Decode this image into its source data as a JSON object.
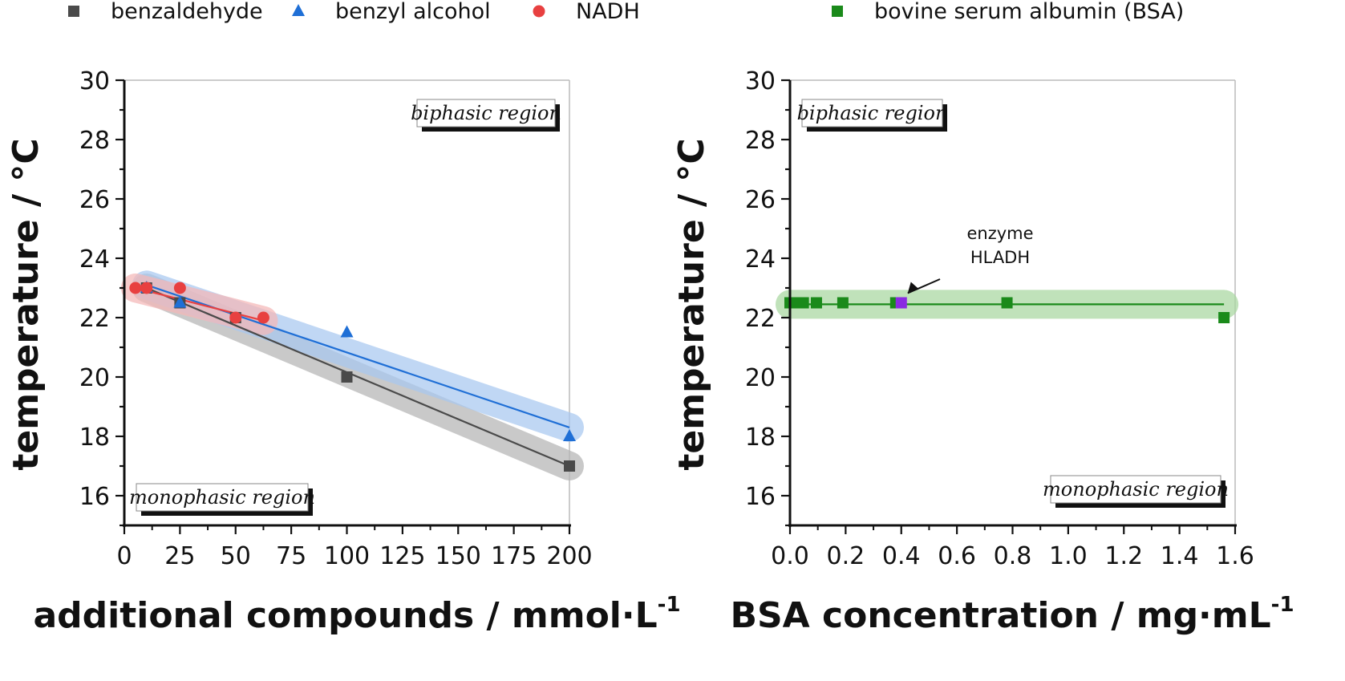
{
  "chart_data": [
    {
      "type": "scatter",
      "xlabel": "additional compounds / mmol·L",
      "xlabel_sup": "-1",
      "ylabel": "temperature / °C",
      "xlim": [
        0,
        200
      ],
      "ylim": [
        15,
        30
      ],
      "xticks": [
        "0",
        "25",
        "50",
        "75",
        "100",
        "125",
        "150",
        "175",
        "200"
      ],
      "yticks": [
        "16",
        "18",
        "20",
        "22",
        "24",
        "26",
        "28",
        "30"
      ],
      "grid": false,
      "legend_position": "top",
      "region_top": "biphasic region",
      "region_bottom": "monophasic region",
      "series": [
        {
          "name": "benzaldehyde",
          "marker": "square",
          "color": "#4a4a4a",
          "band_color": "#b5b5b5",
          "x": [
            10,
            25,
            50,
            100,
            200
          ],
          "y": [
            23.0,
            22.5,
            22.0,
            20.0,
            17.0
          ],
          "fit": [
            [
              10,
              23.0
            ],
            [
              200,
              17.0
            ]
          ]
        },
        {
          "name": "benzyl alcohol",
          "marker": "triangle",
          "color": "#1f6fd6",
          "band_color": "#a8c8f0",
          "x": [
            10,
            25,
            100,
            200
          ],
          "y": [
            23.0,
            22.5,
            21.5,
            18.0
          ],
          "fit": [
            [
              10,
              23.1
            ],
            [
              200,
              18.3
            ]
          ]
        },
        {
          "name": "NADH",
          "marker": "circle",
          "color": "#e84040",
          "band_color": "#f5b8b8",
          "x": [
            5,
            10,
            25,
            50,
            62.5
          ],
          "y": [
            23.0,
            23.0,
            23.0,
            22.0,
            22.0
          ],
          "fit": [
            [
              5,
              23.0
            ],
            [
              62.5,
              21.9
            ]
          ]
        }
      ]
    },
    {
      "type": "scatter",
      "xlabel": "BSA concentration / mg·mL",
      "xlabel_sup": "-1",
      "ylabel": "temperature / °C",
      "xlim": [
        0,
        1.6
      ],
      "ylim": [
        15,
        30
      ],
      "xticks": [
        "0.0",
        "0.2",
        "0.4",
        "0.6",
        "0.8",
        "1.0",
        "1.2",
        "1.4",
        "1.6"
      ],
      "yticks": [
        "16",
        "18",
        "20",
        "22",
        "24",
        "26",
        "28",
        "30"
      ],
      "grid": false,
      "legend_position": "top",
      "region_top": "biphasic region",
      "region_bottom": "monophasic region",
      "annotation": [
        "enzyme",
        "HLADH"
      ],
      "highlight": {
        "x": 0.4,
        "y": 22.5,
        "color": "#8a2be2"
      },
      "series": [
        {
          "name": "bovine serum albumin (BSA)",
          "marker": "square",
          "color": "#1a8a1a",
          "band_color": "#a8d8a0",
          "x": [
            0.0,
            0.012,
            0.024,
            0.048,
            0.095,
            0.19,
            0.38,
            0.78,
            1.56
          ],
          "y": [
            22.5,
            22.5,
            22.5,
            22.5,
            22.5,
            22.5,
            22.5,
            22.5,
            22.0
          ],
          "fit": [
            [
              0.0,
              22.45
            ],
            [
              1.56,
              22.45
            ]
          ]
        }
      ]
    }
  ]
}
